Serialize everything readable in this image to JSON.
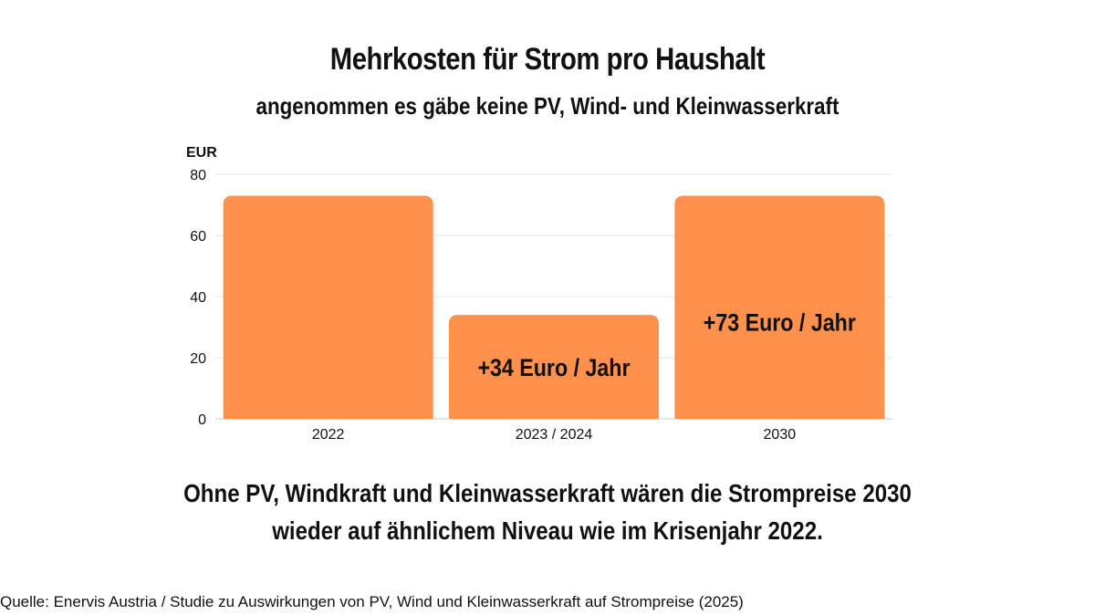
{
  "header": {
    "title": "Mehrkosten für Strom pro Haushalt",
    "subtitle": "angenommen es gäbe keine PV, Wind- und Kleinwasserkraft"
  },
  "chart_data": {
    "type": "bar",
    "ylabel": "EUR",
    "ylim": [
      0,
      80
    ],
    "yticks": [
      "0",
      "20",
      "40",
      "60",
      "80"
    ],
    "grid": true,
    "bar_color": "#FF914D",
    "categories": [
      "2022",
      "2023 / 2024",
      "2030"
    ],
    "values": [
      73,
      34,
      73
    ],
    "data_labels": [
      "",
      "+34 Euro / Jahr",
      "+73 Euro / Jahr"
    ]
  },
  "conclusion": {
    "line1": "Ohne PV, Windkraft und Kleinwasserkraft wären die Strompreise 2030",
    "line2": "wieder auf ähnlichem Niveau wie im Krisenjahr 2022."
  },
  "footer": {
    "source": "Quelle: Enervis Austria / Studie zu Auswirkungen von PV, Wind und Kleinwasserkraft auf Strompreise (2025)"
  }
}
